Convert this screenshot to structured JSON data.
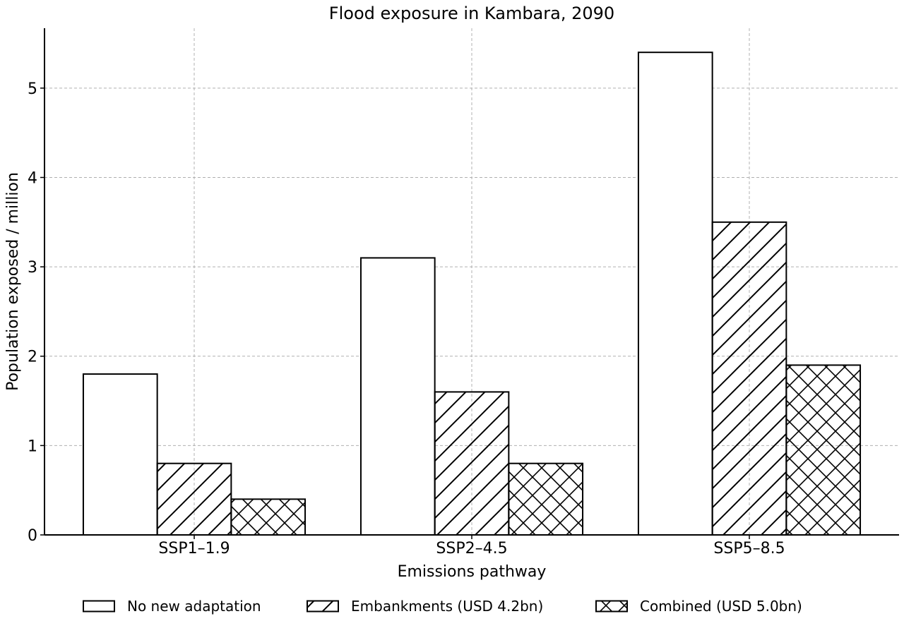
{
  "chart_data": {
    "type": "bar",
    "title": "Flood exposure in Kambara, 2090",
    "xlabel": "Emissions pathway",
    "ylabel": "Population exposed / million",
    "categories": [
      "SSP1–1.9",
      "SSP2–4.5",
      "SSP5–8.5"
    ],
    "series": [
      {
        "name": "No new adaptation",
        "values": [
          1.8,
          3.1,
          5.4
        ],
        "pattern": "none"
      },
      {
        "name": "Embankments (USD 4.2bn)",
        "values": [
          0.8,
          1.6,
          3.5
        ],
        "pattern": "diagonal"
      },
      {
        "name": "Combined (USD 5.0bn)",
        "values": [
          0.4,
          0.8,
          1.9
        ],
        "pattern": "crosshatch"
      }
    ],
    "ylim": [
      0,
      5.67
    ],
    "yticks": [
      0,
      1,
      2,
      3,
      4,
      5
    ],
    "grid": true,
    "legend_position": "bottom",
    "colors": {
      "fill": "#ffffff",
      "stroke": "#000000",
      "grid": "#b0b0b0"
    }
  }
}
